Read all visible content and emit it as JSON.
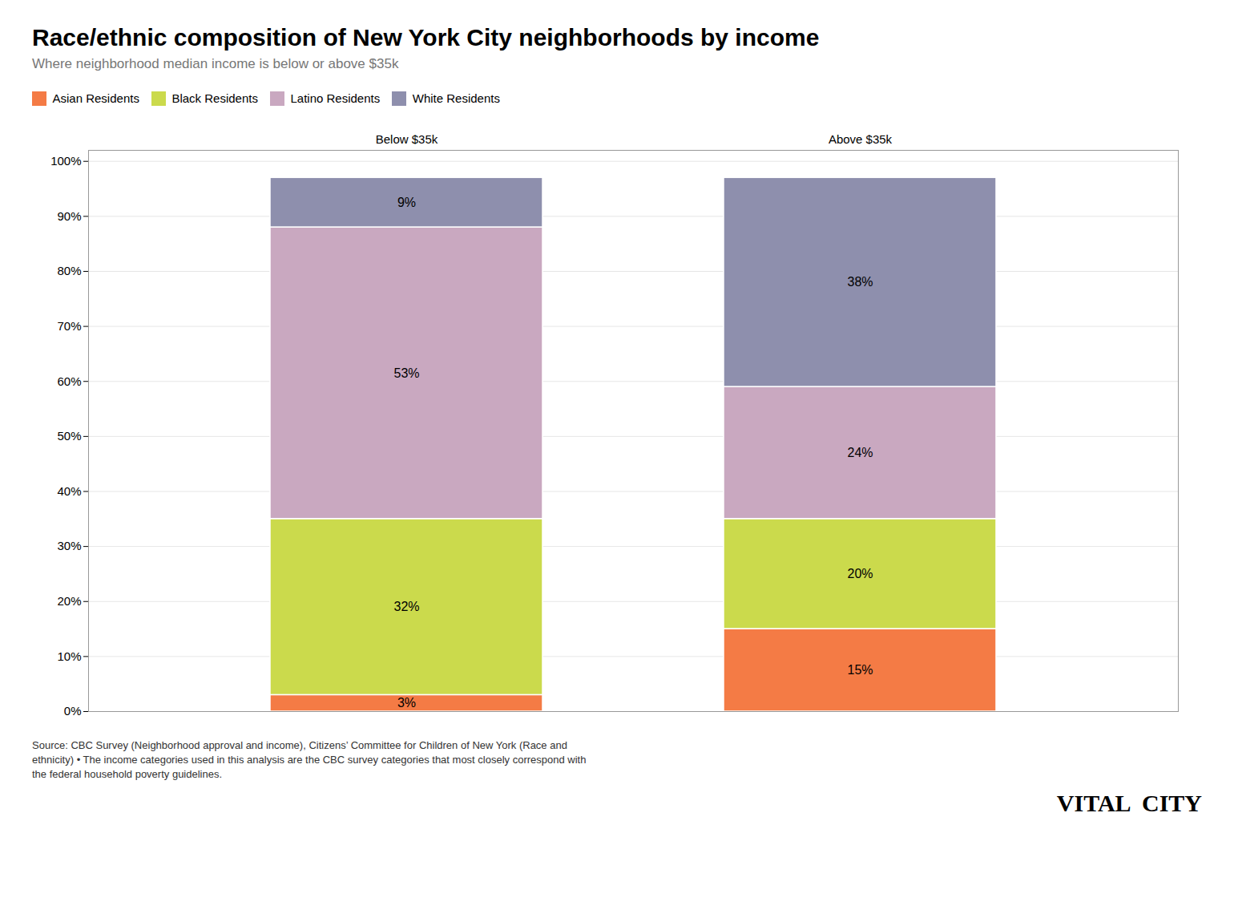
{
  "chart_data": {
    "type": "bar",
    "title": "Race/ethnic composition of New York City neighborhoods by income",
    "subtitle": "Where neighborhood median income is below or above $35k",
    "categories": [
      "Below $35k",
      "Above $35k"
    ],
    "series": [
      {
        "name": "Asian Residents",
        "color": "#F47B45",
        "values": [
          3,
          15
        ],
        "value_labels": [
          "3%",
          "15%"
        ]
      },
      {
        "name": "Black Residents",
        "color": "#CBDA4C",
        "values": [
          32,
          20
        ],
        "value_labels": [
          "32%",
          "20%"
        ]
      },
      {
        "name": "Latino Residents",
        "color": "#C9A8C0",
        "values": [
          53,
          24
        ],
        "value_labels": [
          "53%",
          "24%"
        ]
      },
      {
        "name": "White Residents",
        "color": "#8E8FAD",
        "values": [
          9,
          38
        ],
        "value_labels": [
          "9%",
          "38%"
        ]
      }
    ],
    "stacked": true,
    "data_labels": true,
    "ylim": [
      0,
      102
    ],
    "yticks": [
      {
        "value": 0,
        "label": "0%"
      },
      {
        "value": 10,
        "label": "10%"
      },
      {
        "value": 20,
        "label": "20%"
      },
      {
        "value": 30,
        "label": "30%"
      },
      {
        "value": 40,
        "label": "40%"
      },
      {
        "value": 50,
        "label": "50%"
      },
      {
        "value": 60,
        "label": "60%"
      },
      {
        "value": 70,
        "label": "70%"
      },
      {
        "value": 80,
        "label": "80%"
      },
      {
        "value": 90,
        "label": "90%"
      },
      {
        "value": 100,
        "label": "100%"
      }
    ],
    "grid": true,
    "legend": "top",
    "annotations": [
      "Source: CBC Survey (Neighborhood approval and income), Citizens’ Committee for Children of New York (Race and\nethnicity) • The income categories used in this analysis are the CBC survey categories that most closely correspond with\nthe federal household poverty guidelines.",
      "VITAL  CITY"
    ]
  }
}
